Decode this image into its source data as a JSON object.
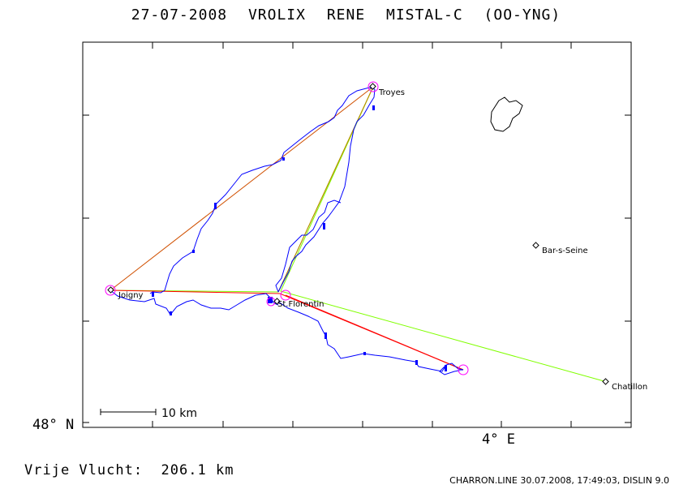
{
  "title": "27-07-2008    VROLIX RENE    MISTAL-C (OO-YNG)",
  "axis": {
    "lat_label": "48° N",
    "lon_label": "4° E"
  },
  "scale_bar": "10 km",
  "towns": {
    "troyes": "Troyes",
    "joigny": "Joigny",
    "st_florentin": "St.Florentin",
    "bar_s_seine": "Bar-s-Seine",
    "chatillon": "Chatillon"
  },
  "flight": {
    "label": "Vrije Vlucht:",
    "distance": "206.1 km"
  },
  "footer": "CHARRON.LINE 30.07.2008, 17:49:03, DISLIN 9.0",
  "colors": {
    "track": "#0000ff",
    "task": "#ff0000",
    "free": "#80ff00",
    "turnpoint": "#ff00ff",
    "frame": "#000000"
  }
}
